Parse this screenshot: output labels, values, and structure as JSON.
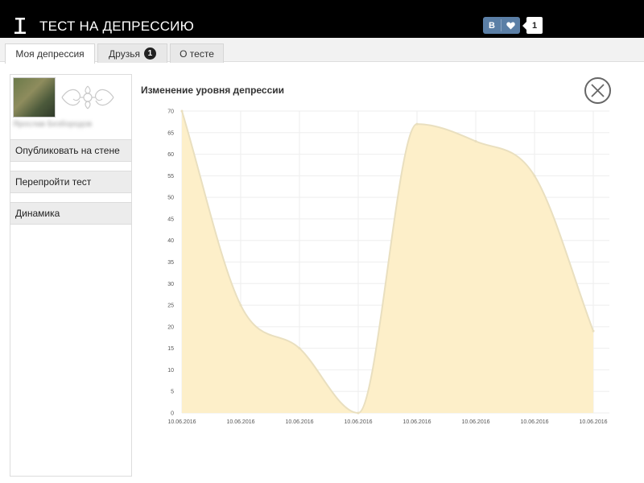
{
  "app": {
    "title": "ТЕСТ НА ДЕПРЕССИЮ",
    "icon": "app-logo-icon"
  },
  "vk": {
    "logo": "В",
    "heart_icon": "heart-icon",
    "count": "1"
  },
  "tabs": [
    {
      "label": "Моя депрессия",
      "active": true
    },
    {
      "label": "Друзья",
      "badge": "1",
      "active": false
    },
    {
      "label": "О тесте",
      "active": false
    }
  ],
  "sidebar": {
    "user_name": "Ярослав Безбородов",
    "buttons": [
      {
        "label": "Опубликовать на стене"
      },
      {
        "label": "Перепройти тест"
      },
      {
        "label": "Динамика"
      }
    ]
  },
  "chart": {
    "close_icon": "close-icon"
  },
  "colors": {
    "topbar": "#000000",
    "vk_blue": "#5b7fa6",
    "area_fill": "#fdefc9",
    "area_stroke": "#e9dfbf",
    "grid": "#eeeeee"
  },
  "chart_data": {
    "type": "area",
    "title": "Изменение уровня депрессии",
    "categories": [
      "10.06.2016",
      "10.06.2016",
      "10.06.2016",
      "10.06.2016",
      "10.06.2016",
      "10.06.2016",
      "10.06.2016",
      "10.06.2016"
    ],
    "values": [
      70,
      25,
      15,
      0,
      67,
      63,
      55,
      19
    ],
    "ylim": [
      0,
      70
    ],
    "yticks": [
      0,
      5,
      10,
      15,
      20,
      25,
      30,
      35,
      40,
      45,
      50,
      55,
      60,
      65,
      70
    ],
    "grid": true,
    "smooth": true
  }
}
